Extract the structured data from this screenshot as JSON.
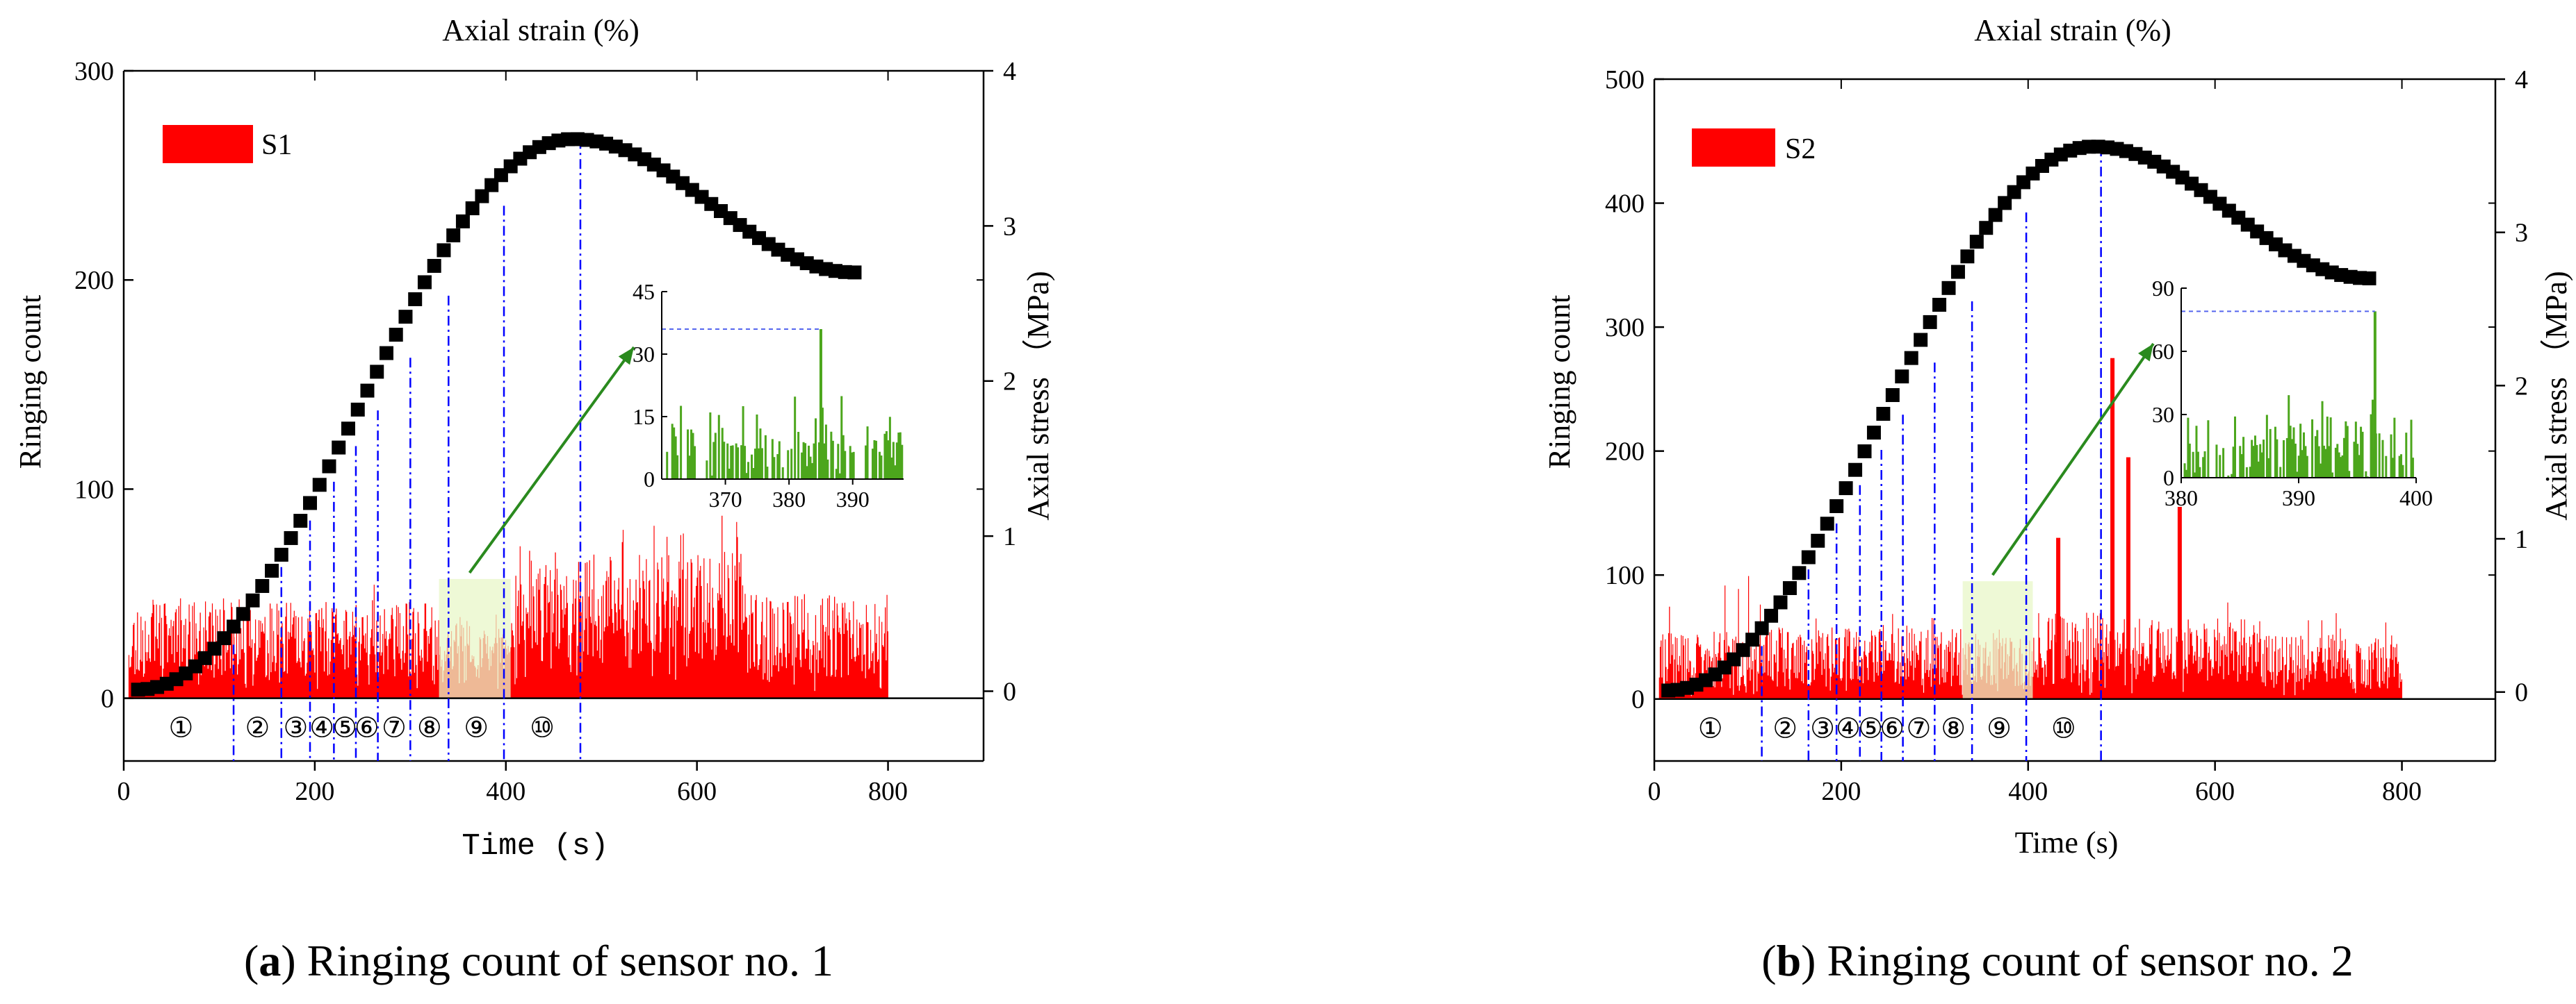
{
  "chart_data": [
    {
      "type": "bar",
      "panel_caption_letter": "a",
      "panel_caption_text": ") Ringing count of sensor no. 1",
      "legend": "S1",
      "top_xlabel": "Axial strain (%)",
      "xlabel": "Time (s)",
      "ylabel": "Ringing count",
      "y2label": "Axial stress （MPa)",
      "xlim": [
        0,
        900
      ],
      "ylim": [
        -30,
        300
      ],
      "y2lim": [
        -0.45,
        4
      ],
      "xticks": [
        0,
        200,
        400,
        600,
        800
      ],
      "yticks": [
        0,
        100,
        200,
        300
      ],
      "y2ticks": [
        0,
        1,
        2,
        3,
        4
      ],
      "stage_boundaries": [
        115,
        165,
        195,
        220,
        243,
        266,
        300,
        340,
        398,
        478
      ],
      "stage_labels": [
        "①",
        "②",
        "③",
        "④",
        "⑤",
        "⑥",
        "⑦",
        "⑧",
        "⑨",
        "⑩"
      ],
      "ringing_bands": [
        {
          "x0": 5,
          "x1": 115,
          "base": 30,
          "amp": 18,
          "spike": 50
        },
        {
          "x0": 115,
          "x1": 330,
          "base": 28,
          "amp": 18,
          "spike": 55
        },
        {
          "x0": 330,
          "x1": 410,
          "base": 25,
          "amp": 12,
          "spike": 40
        },
        {
          "x0": 410,
          "x1": 480,
          "base": 45,
          "amp": 22,
          "spike": 75
        },
        {
          "x0": 480,
          "x1": 650,
          "base": 45,
          "amp": 25,
          "spike": 95
        },
        {
          "x0": 650,
          "x1": 800,
          "base": 30,
          "amp": 20,
          "spike": 50
        }
      ],
      "stress_curve": {
        "x_start": 15,
        "x_end": 765,
        "step": 10,
        "peak_x": 470,
        "peak_y": 3.56,
        "start_y": 0.01,
        "end_y": 2.7
      },
      "inset": {
        "xlim": [
          360,
          398
        ],
        "ylim": [
          0,
          45
        ],
        "xticks": [
          370,
          380,
          390
        ],
        "yticks": [
          0,
          15,
          30,
          45
        ],
        "peak_value": 36,
        "peak_x": 385,
        "base": 8,
        "amp": 14
      }
    },
    {
      "type": "bar",
      "panel_caption_letter": "b",
      "panel_caption_text": ") Ringing count of sensor no. 2",
      "legend": "S2",
      "top_xlabel": "Axial strain (%)",
      "xlabel": "Time (s)",
      "ylabel": "Ringing count",
      "y2label": "Axial stress （MPa)",
      "xlim": [
        0,
        900
      ],
      "ylim": [
        -50,
        500
      ],
      "y2lim": [
        -0.45,
        4
      ],
      "xticks": [
        0,
        200,
        400,
        600,
        800
      ],
      "yticks": [
        0,
        100,
        200,
        300,
        400,
        500
      ],
      "y2ticks": [
        0,
        1,
        2,
        3,
        4
      ],
      "stage_boundaries": [
        115,
        165,
        195,
        220,
        243,
        266,
        300,
        340,
        398,
        478
      ],
      "stage_labels": [
        "①",
        "②",
        "③",
        "④",
        "⑤",
        "⑥",
        "⑦",
        "⑧",
        "⑨",
        "⑩"
      ],
      "ringing_bands": [
        {
          "x0": 5,
          "x1": 115,
          "base": 30,
          "amp": 25,
          "spike": 105
        },
        {
          "x0": 115,
          "x1": 330,
          "base": 35,
          "amp": 25,
          "spike": 70
        },
        {
          "x0": 330,
          "x1": 410,
          "base": 30,
          "amp": 20,
          "spike": 60
        },
        {
          "x0": 410,
          "x1": 480,
          "base": 40,
          "amp": 30,
          "spike": 130
        },
        {
          "x0": 480,
          "x1": 650,
          "base": 40,
          "amp": 25,
          "spike": 80
        },
        {
          "x0": 650,
          "x1": 800,
          "base": 30,
          "amp": 22,
          "spike": 70
        }
      ],
      "ringing_spikes": [
        {
          "x": 488,
          "value": 275
        },
        {
          "x": 505,
          "value": 195
        },
        {
          "x": 560,
          "value": 155
        },
        {
          "x": 430,
          "value": 130
        }
      ],
      "stress_curve": {
        "x_start": 15,
        "x_end": 765,
        "step": 10,
        "peak_x": 470,
        "peak_y": 3.56,
        "start_y": 0.01,
        "end_y": 2.7
      },
      "inset": {
        "xlim": [
          380,
          400
        ],
        "ylim": [
          0,
          90
        ],
        "xticks": [
          380,
          390,
          400
        ],
        "yticks": [
          0,
          30,
          60,
          90
        ],
        "peak_value": 79,
        "peak_x": 396.5,
        "base": 15,
        "amp": 30
      }
    }
  ],
  "colors": {
    "ringing": "#ff0000",
    "stress": "#000000",
    "stage_line": "#0000ff",
    "inset": "#4ca61c",
    "arrow": "#2a8a1e",
    "highlight": "#e8f7c8"
  }
}
